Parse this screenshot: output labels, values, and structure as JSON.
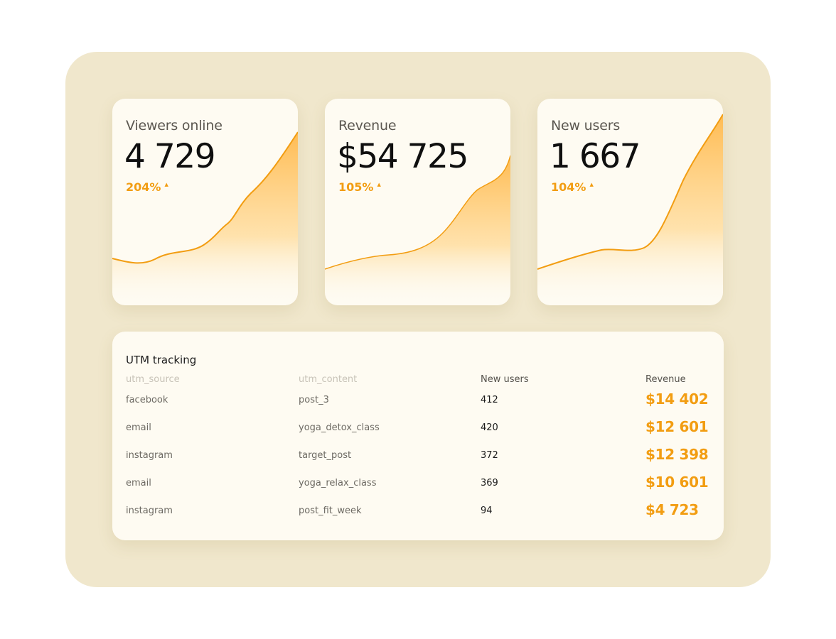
{
  "colors": {
    "accent": "#f29d12",
    "panel_bg": "#f0e7cc",
    "card_bg": "#fefbf2"
  },
  "cards": [
    {
      "title": "Viewers online",
      "value": "4 729",
      "change": "204%",
      "arrow": "▲"
    },
    {
      "title": "Revenue",
      "value": "$54 725",
      "change": "105%",
      "arrow": "▲"
    },
    {
      "title": "New users",
      "value": "1 667",
      "change": "104%",
      "arrow": "▲"
    }
  ],
  "table": {
    "title": "UTM tracking",
    "headers": [
      "utm_source",
      "utm_content",
      "New users",
      "Revenue"
    ],
    "rows": [
      {
        "source": "facebook",
        "content": "post_3",
        "new_users": "412",
        "revenue": "$14 402"
      },
      {
        "source": "email",
        "content": "yoga_detox_class",
        "new_users": "420",
        "revenue": "$12 601"
      },
      {
        "source": "instagram",
        "content": "target_post",
        "new_users": "372",
        "revenue": "$12 398"
      },
      {
        "source": "email",
        "content": "yoga_relax_class",
        "new_users": "369",
        "revenue": "$10 601"
      },
      {
        "source": "instagram",
        "content": "post_fit_week",
        "new_users": "94",
        "revenue": "$4 723"
      }
    ]
  }
}
